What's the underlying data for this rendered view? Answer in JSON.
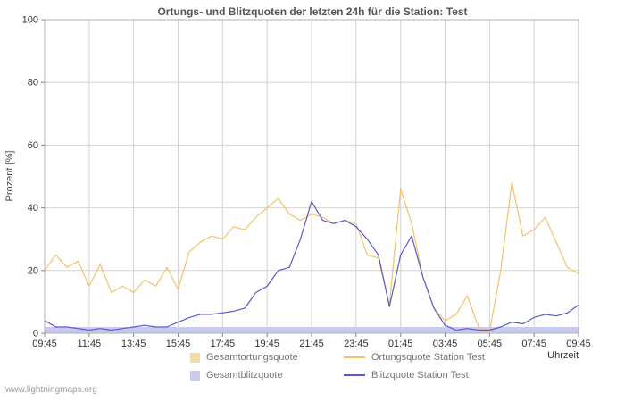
{
  "title": "Ortungs- und Blitzquoten der letzten 24h für die Station: Test",
  "watermark": "www.lightningmaps.org",
  "axes": {
    "ylabel": "Prozent [%]",
    "xlabel": "Uhrzeit",
    "yticks": [
      0,
      20,
      40,
      60,
      80,
      100
    ],
    "xticklabels": [
      "09:45",
      "11:45",
      "13:45",
      "15:45",
      "17:45",
      "19:45",
      "21:45",
      "23:45",
      "01:45",
      "03:45",
      "05:45",
      "07:45",
      "09:45"
    ]
  },
  "colors": {
    "grid": "#d4d4d4",
    "frame": "#b0b0b0",
    "tick": "#888888",
    "ortung_line": "#f2c368",
    "blitz_line": "#5a5ac8",
    "gesamtortung_fill": "#f5dba6",
    "gesamtblitz_fill": "#c9c9f2"
  },
  "legend": {
    "items": [
      {
        "label": "Gesamtortungsquote",
        "type": "area",
        "color": "#f5dba6"
      },
      {
        "label": "Ortungsquote Station Test",
        "type": "line",
        "color": "#f2c368"
      },
      {
        "label": "Gesamtblitzquote",
        "type": "area",
        "color": "#c9c9f2"
      },
      {
        "label": "Blitzquote Station Test",
        "type": "line",
        "color": "#5a5ac8"
      }
    ]
  },
  "chart_data": {
    "type": "line",
    "title": "Ortungs- und Blitzquoten der letzten 24h für die Station: Test",
    "xlabel": "Uhrzeit",
    "ylabel": "Prozent [%]",
    "ylim": [
      0,
      100
    ],
    "x_start": "09:45",
    "interval_minutes": 30,
    "x_ticklabels": [
      "09:45",
      "11:45",
      "13:45",
      "15:45",
      "17:45",
      "19:45",
      "21:45",
      "23:45",
      "01:45",
      "03:45",
      "05:45",
      "07:45",
      "09:45"
    ],
    "grid": true,
    "legend_position": "bottom",
    "series": [
      {
        "name": "Gesamtortungsquote",
        "style": "area",
        "color": "#f5dba6",
        "values": [
          1,
          1,
          1,
          1,
          1,
          1,
          1,
          1,
          1,
          1,
          1,
          1,
          1,
          1,
          1,
          1,
          1,
          1,
          1,
          1,
          1,
          1,
          1,
          1,
          1,
          1,
          1,
          1,
          1,
          1,
          1,
          1,
          1,
          1,
          1,
          1,
          1,
          1,
          1,
          1,
          1,
          1,
          1,
          1,
          1,
          1,
          1,
          1,
          1
        ]
      },
      {
        "name": "Gesamtblitzquote",
        "style": "area",
        "color": "#c9c9f2",
        "values": [
          2,
          2,
          2,
          2,
          2,
          2,
          2,
          2,
          2,
          2,
          2,
          2,
          2,
          2,
          2,
          2,
          2,
          2,
          2,
          2,
          2,
          2,
          2,
          2,
          2,
          2,
          2,
          2,
          2,
          2,
          2,
          2,
          2,
          2,
          2,
          2,
          2,
          2,
          2,
          2,
          2,
          2,
          2,
          2,
          2,
          2,
          2,
          2,
          2
        ]
      },
      {
        "name": "Ortungsquote Station Test",
        "style": "line",
        "color": "#f2c368",
        "values": [
          20,
          25,
          21,
          23,
          15,
          22,
          13,
          15,
          13,
          17,
          15,
          21,
          14,
          26,
          29,
          31,
          30,
          34,
          33,
          37,
          40,
          43,
          38,
          36,
          38,
          37,
          35,
          36,
          35,
          25,
          24,
          9,
          46,
          35,
          18,
          8,
          4,
          6,
          12,
          2,
          0.5,
          20,
          48,
          31,
          33,
          37,
          29,
          21,
          19
        ]
      },
      {
        "name": "Blitzquote Station Test",
        "style": "line",
        "color": "#5a5ac8",
        "values": [
          4,
          2,
          2,
          1.5,
          1,
          1.5,
          1,
          1.5,
          2,
          2.5,
          2,
          2,
          3.5,
          5,
          6,
          6,
          6.5,
          7,
          8,
          13,
          15,
          20,
          21,
          30,
          42,
          36,
          35,
          36,
          34,
          30,
          25,
          8.5,
          25,
          31,
          18,
          8,
          2.5,
          1,
          1.5,
          1,
          1,
          2,
          3.5,
          3,
          5,
          6,
          5.5,
          6.5,
          9
        ]
      }
    ]
  }
}
